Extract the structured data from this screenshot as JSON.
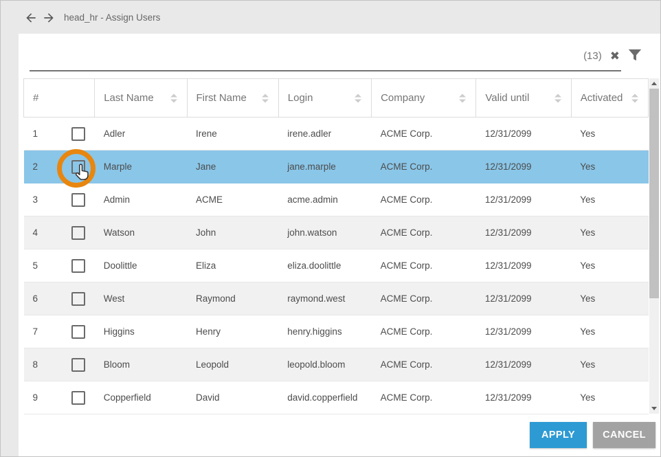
{
  "window": {
    "title": "head_hr - Assign Users"
  },
  "nav": {
    "back_icon": "arrow-left",
    "forward_icon": "arrow-right"
  },
  "filter_bar": {
    "search_value": "",
    "search_placeholder": "",
    "result_count": "(13)",
    "clear_icon": "clear-x",
    "filter_icon": "funnel"
  },
  "table": {
    "columns": [
      {
        "label": "#",
        "sortable": false
      },
      {
        "label": "Last Name",
        "sortable": true
      },
      {
        "label": "First Name",
        "sortable": true
      },
      {
        "label": "Login",
        "sortable": true
      },
      {
        "label": "Company",
        "sortable": true
      },
      {
        "label": "Valid until",
        "sortable": true
      },
      {
        "label": "Activated",
        "sortable": true
      }
    ],
    "rows": [
      {
        "num": "1",
        "last_name": "Adler",
        "first_name": "Irene",
        "login": "irene.adler",
        "company": "ACME Corp.",
        "valid_until": "12/31/2099",
        "activated": "Yes",
        "checked": false,
        "highlighted": false
      },
      {
        "num": "2",
        "last_name": "Marple",
        "first_name": "Jane",
        "login": "jane.marple",
        "company": "ACME Corp.",
        "valid_until": "12/31/2099",
        "activated": "Yes",
        "checked": false,
        "highlighted": true
      },
      {
        "num": "3",
        "last_name": "Admin",
        "first_name": "ACME",
        "login": "acme.admin",
        "company": "ACME Corp.",
        "valid_until": "12/31/2099",
        "activated": "Yes",
        "checked": false,
        "highlighted": false
      },
      {
        "num": "4",
        "last_name": "Watson",
        "first_name": "John",
        "login": "john.watson",
        "company": "ACME Corp.",
        "valid_until": "12/31/2099",
        "activated": "Yes",
        "checked": false,
        "highlighted": false
      },
      {
        "num": "5",
        "last_name": "Doolittle",
        "first_name": "Eliza",
        "login": "eliza.doolittle",
        "company": "ACME Corp.",
        "valid_until": "12/31/2099",
        "activated": "Yes",
        "checked": false,
        "highlighted": false
      },
      {
        "num": "6",
        "last_name": "West",
        "first_name": "Raymond",
        "login": "raymond.west",
        "company": "ACME Corp.",
        "valid_until": "12/31/2099",
        "activated": "Yes",
        "checked": false,
        "highlighted": false
      },
      {
        "num": "7",
        "last_name": "Higgins",
        "first_name": "Henry",
        "login": "henry.higgins",
        "company": "ACME Corp.",
        "valid_until": "12/31/2099",
        "activated": "Yes",
        "checked": false,
        "highlighted": false
      },
      {
        "num": "8",
        "last_name": "Bloom",
        "first_name": "Leopold",
        "login": "leopold.bloom",
        "company": "ACME Corp.",
        "valid_until": "12/31/2099",
        "activated": "Yes",
        "checked": false,
        "highlighted": false
      },
      {
        "num": "9",
        "last_name": "Copperfield",
        "first_name": "David",
        "login": "david.copperfield",
        "company": "ACME Corp.",
        "valid_until": "12/31/2099",
        "activated": "Yes",
        "checked": false,
        "highlighted": false
      }
    ]
  },
  "footer": {
    "apply_label": "APPLY",
    "cancel_label": "CANCEL"
  },
  "colors": {
    "highlight_row": "#8ac6e8",
    "accent_blue": "#2d9ad3",
    "cancel_gray": "#a2a2a2",
    "annotation_orange": "#e8860f",
    "topbar_gray": "#e9e9e9"
  }
}
